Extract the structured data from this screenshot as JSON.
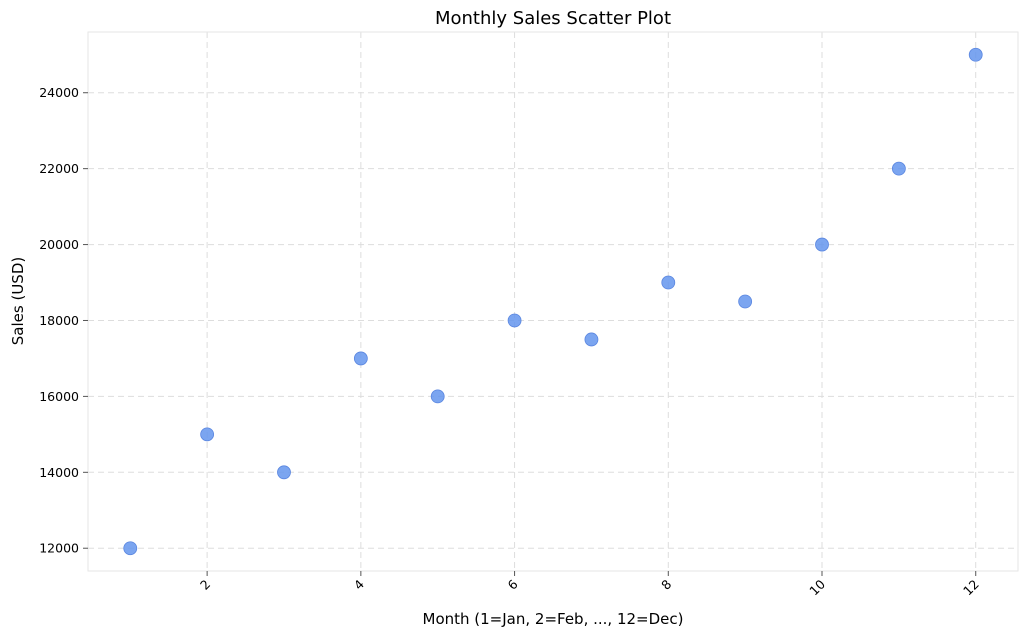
{
  "chart_data": {
    "type": "scatter",
    "title": "Monthly Sales Scatter Plot",
    "xlabel": "Month (1=Jan, 2=Feb, ..., 12=Dec)",
    "ylabel": "Sales (USD)",
    "x": [
      1,
      2,
      3,
      4,
      5,
      6,
      7,
      8,
      9,
      10,
      11,
      12
    ],
    "y": [
      12000,
      15000,
      14000,
      17000,
      16000,
      18000,
      17500,
      19000,
      18500,
      20000,
      22000,
      25000
    ],
    "xlim": [
      0.45,
      12.55
    ],
    "ylim": [
      11400,
      25600
    ],
    "xticks": [
      2,
      4,
      6,
      8,
      10,
      12
    ],
    "yticks": [
      12000,
      14000,
      16000,
      18000,
      20000,
      22000,
      24000
    ],
    "xtick_rotation": -45,
    "grid": true,
    "marker_color": "#6495ED"
  }
}
